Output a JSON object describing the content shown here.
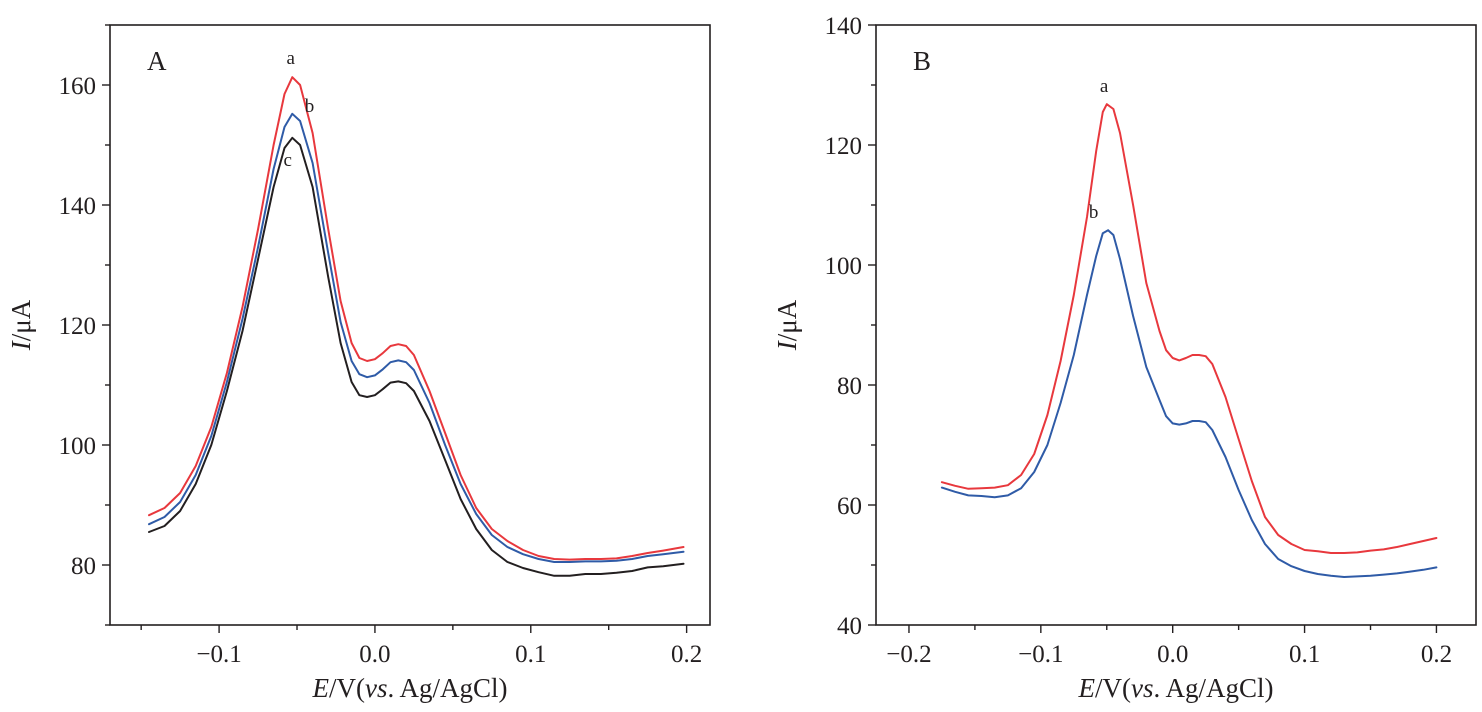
{
  "chart_data": [
    {
      "type": "line",
      "panel_label": "A",
      "xlabel_italic": "E",
      "xlabel_text": "/V(",
      "xlabel_vs": "vs",
      "xlabel_tail": ". Ag/AgCl)",
      "ylabel_italic": "I",
      "ylabel_text": "/μA",
      "xlim": [
        -0.17,
        0.215
      ],
      "ylim": [
        70,
        170
      ],
      "xticks": [
        -0.1,
        0.0,
        0.1,
        0.2
      ],
      "xtick_labels": [
        "−0.1",
        "0.0",
        "0.1",
        "0.2"
      ],
      "yticks": [
        80,
        100,
        120,
        140,
        160
      ],
      "ytick_labels": [
        "80",
        "100",
        "120",
        "140",
        "160"
      ],
      "grid": false,
      "series": [
        {
          "name": "a",
          "color": "#e8383d",
          "label_at": [
            -0.054,
            163.5
          ],
          "points": [
            [
              -0.145,
              88.3
            ],
            [
              -0.135,
              89.5
            ],
            [
              -0.125,
              92
            ],
            [
              -0.115,
              96.5
            ],
            [
              -0.105,
              103
            ],
            [
              -0.095,
              112
            ],
            [
              -0.085,
              123
            ],
            [
              -0.075,
              136
            ],
            [
              -0.065,
              150
            ],
            [
              -0.058,
              158.5
            ],
            [
              -0.053,
              161.3
            ],
            [
              -0.048,
              160
            ],
            [
              -0.04,
              152
            ],
            [
              -0.03,
              136
            ],
            [
              -0.022,
              124
            ],
            [
              -0.015,
              117
            ],
            [
              -0.01,
              114.5
            ],
            [
              -0.005,
              114
            ],
            [
              0.0,
              114.3
            ],
            [
              0.005,
              115.3
            ],
            [
              0.01,
              116.5
            ],
            [
              0.015,
              116.8
            ],
            [
              0.02,
              116.5
            ],
            [
              0.025,
              115
            ],
            [
              0.035,
              109
            ],
            [
              0.045,
              102
            ],
            [
              0.055,
              95
            ],
            [
              0.065,
              89.5
            ],
            [
              0.075,
              86
            ],
            [
              0.085,
              84
            ],
            [
              0.095,
              82.5
            ],
            [
              0.105,
              81.5
            ],
            [
              0.115,
              81
            ],
            [
              0.125,
              80.9
            ],
            [
              0.135,
              81
            ],
            [
              0.145,
              81
            ],
            [
              0.155,
              81.1
            ],
            [
              0.165,
              81.5
            ],
            [
              0.175,
              82
            ],
            [
              0.185,
              82.4
            ],
            [
              0.198,
              83
            ]
          ]
        },
        {
          "name": "b",
          "color": "#2f5ba7",
          "label_at": [
            -0.042,
            155.5
          ],
          "points": [
            [
              -0.145,
              86.8
            ],
            [
              -0.135,
              88
            ],
            [
              -0.125,
              90.5
            ],
            [
              -0.115,
              95
            ],
            [
              -0.105,
              101.5
            ],
            [
              -0.095,
              110.5
            ],
            [
              -0.085,
              121
            ],
            [
              -0.075,
              133
            ],
            [
              -0.065,
              146
            ],
            [
              -0.058,
              153
            ],
            [
              -0.053,
              155.2
            ],
            [
              -0.048,
              154
            ],
            [
              -0.04,
              147
            ],
            [
              -0.03,
              132
            ],
            [
              -0.022,
              120.5
            ],
            [
              -0.015,
              114
            ],
            [
              -0.01,
              111.8
            ],
            [
              -0.005,
              111.3
            ],
            [
              0.0,
              111.6
            ],
            [
              0.005,
              112.6
            ],
            [
              0.01,
              113.8
            ],
            [
              0.015,
              114.1
            ],
            [
              0.02,
              113.8
            ],
            [
              0.025,
              112.5
            ],
            [
              0.035,
              107
            ],
            [
              0.045,
              100
            ],
            [
              0.055,
              93.5
            ],
            [
              0.065,
              88.5
            ],
            [
              0.075,
              85
            ],
            [
              0.085,
              83
            ],
            [
              0.095,
              81.8
            ],
            [
              0.105,
              81
            ],
            [
              0.115,
              80.5
            ],
            [
              0.125,
              80.5
            ],
            [
              0.135,
              80.6
            ],
            [
              0.145,
              80.6
            ],
            [
              0.155,
              80.7
            ],
            [
              0.165,
              81
            ],
            [
              0.175,
              81.5
            ],
            [
              0.185,
              81.8
            ],
            [
              0.198,
              82.2
            ]
          ]
        },
        {
          "name": "c",
          "color": "#231f20",
          "label_at": [
            -0.056,
            146.5
          ],
          "points": [
            [
              -0.145,
              85.5
            ],
            [
              -0.135,
              86.5
            ],
            [
              -0.125,
              89
            ],
            [
              -0.115,
              93.5
            ],
            [
              -0.105,
              100
            ],
            [
              -0.095,
              109
            ],
            [
              -0.085,
              119
            ],
            [
              -0.075,
              131
            ],
            [
              -0.065,
              143
            ],
            [
              -0.058,
              149.5
            ],
            [
              -0.053,
              151.2
            ],
            [
              -0.048,
              150
            ],
            [
              -0.04,
              143
            ],
            [
              -0.03,
              128
            ],
            [
              -0.022,
              117
            ],
            [
              -0.015,
              110.5
            ],
            [
              -0.01,
              108.3
            ],
            [
              -0.005,
              108
            ],
            [
              0.0,
              108.3
            ],
            [
              0.005,
              109.3
            ],
            [
              0.01,
              110.4
            ],
            [
              0.015,
              110.6
            ],
            [
              0.02,
              110.3
            ],
            [
              0.025,
              109
            ],
            [
              0.035,
              104
            ],
            [
              0.045,
              97.5
            ],
            [
              0.055,
              91
            ],
            [
              0.065,
              86
            ],
            [
              0.075,
              82.5
            ],
            [
              0.085,
              80.5
            ],
            [
              0.095,
              79.5
            ],
            [
              0.105,
              78.8
            ],
            [
              0.115,
              78.2
            ],
            [
              0.125,
              78.2
            ],
            [
              0.135,
              78.5
            ],
            [
              0.145,
              78.5
            ],
            [
              0.155,
              78.7
            ],
            [
              0.165,
              79
            ],
            [
              0.175,
              79.6
            ],
            [
              0.185,
              79.8
            ],
            [
              0.198,
              80.2
            ]
          ]
        }
      ]
    },
    {
      "type": "line",
      "panel_label": "B",
      "xlabel_italic": "E",
      "xlabel_text": "/V(",
      "xlabel_vs": "vs",
      "xlabel_tail": ". Ag/AgCl)",
      "ylabel_italic": "I",
      "ylabel_text": "/μA",
      "xlim": [
        -0.225,
        0.23
      ],
      "ylim": [
        40,
        140
      ],
      "xticks": [
        -0.2,
        -0.1,
        0.0,
        0.1,
        0.2
      ],
      "xtick_labels": [
        "−0.2",
        "−0.1",
        "0.0",
        "0.1",
        "0.2"
      ],
      "yticks": [
        40,
        60,
        80,
        100,
        120,
        140
      ],
      "ytick_labels": [
        "40",
        "60",
        "80",
        "100",
        "120",
        "140"
      ],
      "grid": false,
      "series": [
        {
          "name": "a",
          "color": "#e8383d",
          "label_at": [
            -0.052,
            128.8
          ],
          "points": [
            [
              -0.175,
              63.8
            ],
            [
              -0.165,
              63.2
            ],
            [
              -0.155,
              62.7
            ],
            [
              -0.145,
              62.8
            ],
            [
              -0.135,
              62.9
            ],
            [
              -0.125,
              63.3
            ],
            [
              -0.115,
              65
            ],
            [
              -0.105,
              68.5
            ],
            [
              -0.095,
              75
            ],
            [
              -0.085,
              84
            ],
            [
              -0.075,
              95
            ],
            [
              -0.065,
              108
            ],
            [
              -0.058,
              119
            ],
            [
              -0.053,
              125.5
            ],
            [
              -0.05,
              126.8
            ],
            [
              -0.045,
              126
            ],
            [
              -0.04,
              122
            ],
            [
              -0.03,
              110
            ],
            [
              -0.02,
              97
            ],
            [
              -0.01,
              89
            ],
            [
              -0.005,
              85.8
            ],
            [
              0.0,
              84.5
            ],
            [
              0.005,
              84.1
            ],
            [
              0.01,
              84.5
            ],
            [
              0.015,
              85
            ],
            [
              0.02,
              85
            ],
            [
              0.025,
              84.8
            ],
            [
              0.03,
              83.5
            ],
            [
              0.04,
              78
            ],
            [
              0.05,
              71
            ],
            [
              0.06,
              64
            ],
            [
              0.07,
              58
            ],
            [
              0.08,
              55
            ],
            [
              0.09,
              53.5
            ],
            [
              0.1,
              52.5
            ],
            [
              0.11,
              52.3
            ],
            [
              0.12,
              52
            ],
            [
              0.13,
              52
            ],
            [
              0.14,
              52.1
            ],
            [
              0.15,
              52.4
            ],
            [
              0.16,
              52.6
            ],
            [
              0.17,
              53
            ],
            [
              0.18,
              53.5
            ],
            [
              0.19,
              54
            ],
            [
              0.2,
              54.5
            ]
          ]
        },
        {
          "name": "b",
          "color": "#2f5ba7",
          "label_at": [
            -0.06,
            107.8
          ],
          "points": [
            [
              -0.175,
              62.9
            ],
            [
              -0.165,
              62.2
            ],
            [
              -0.155,
              61.6
            ],
            [
              -0.145,
              61.5
            ],
            [
              -0.135,
              61.3
            ],
            [
              -0.125,
              61.6
            ],
            [
              -0.115,
              62.8
            ],
            [
              -0.105,
              65.5
            ],
            [
              -0.095,
              70
            ],
            [
              -0.085,
              77
            ],
            [
              -0.075,
              85
            ],
            [
              -0.065,
              95
            ],
            [
              -0.058,
              101.5
            ],
            [
              -0.053,
              105.3
            ],
            [
              -0.049,
              105.8
            ],
            [
              -0.045,
              105
            ],
            [
              -0.04,
              101
            ],
            [
              -0.03,
              91.5
            ],
            [
              -0.02,
              83
            ],
            [
              -0.01,
              77.5
            ],
            [
              -0.005,
              74.8
            ],
            [
              0.0,
              73.6
            ],
            [
              0.005,
              73.4
            ],
            [
              0.01,
              73.6
            ],
            [
              0.015,
              74
            ],
            [
              0.02,
              74
            ],
            [
              0.025,
              73.8
            ],
            [
              0.03,
              72.5
            ],
            [
              0.04,
              68
            ],
            [
              0.05,
              62.5
            ],
            [
              0.06,
              57.5
            ],
            [
              0.07,
              53.5
            ],
            [
              0.08,
              51
            ],
            [
              0.09,
              49.8
            ],
            [
              0.1,
              49
            ],
            [
              0.11,
              48.5
            ],
            [
              0.12,
              48.2
            ],
            [
              0.13,
              48
            ],
            [
              0.14,
              48.1
            ],
            [
              0.15,
              48.2
            ],
            [
              0.16,
              48.4
            ],
            [
              0.17,
              48.6
            ],
            [
              0.18,
              48.9
            ],
            [
              0.19,
              49.2
            ],
            [
              0.2,
              49.6
            ]
          ]
        }
      ]
    }
  ]
}
